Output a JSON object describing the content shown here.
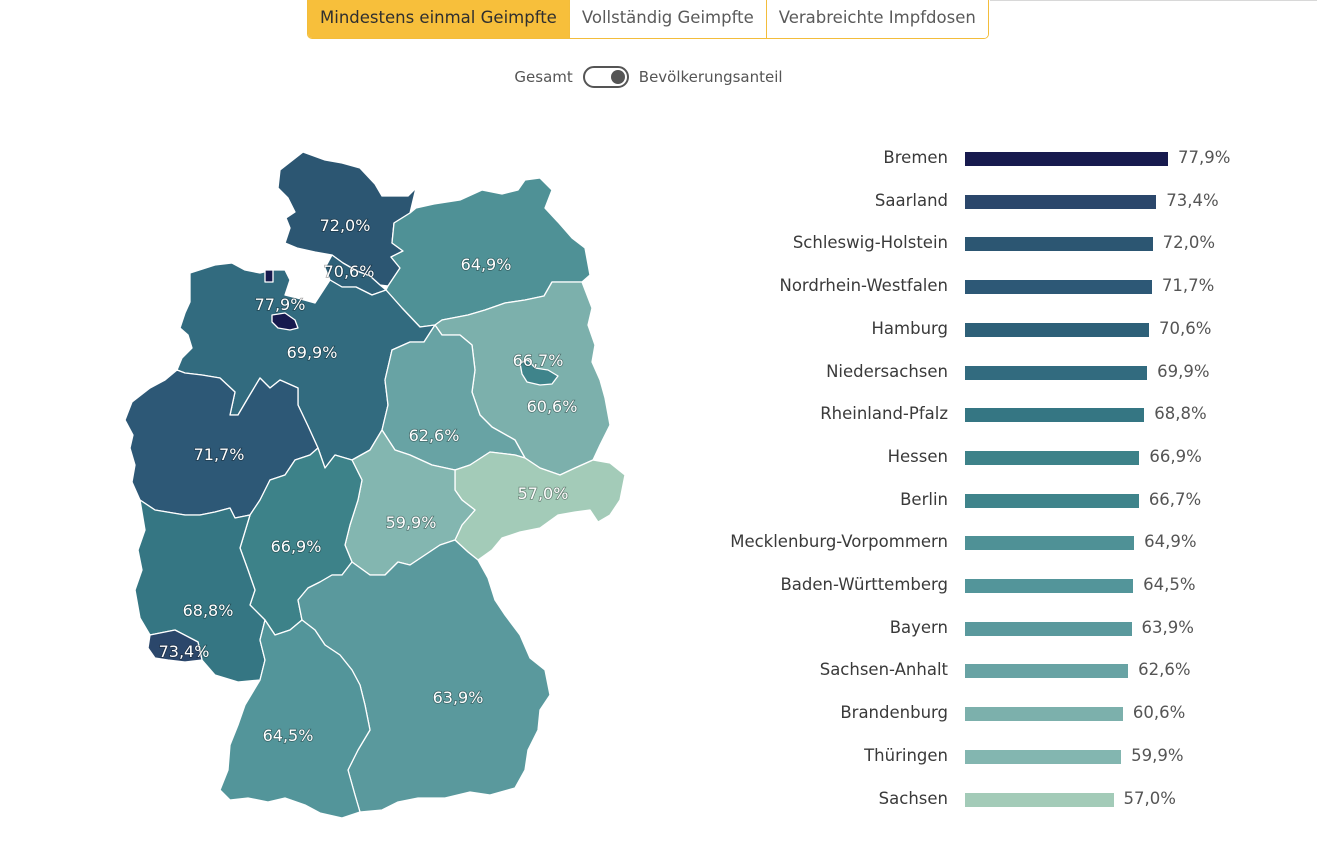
{
  "tabs": [
    {
      "label": "Mindestens einmal Geimpfte",
      "active": true
    },
    {
      "label": "Vollständig Geimpfte",
      "active": false
    },
    {
      "label": "Verabreichte Impfdosen",
      "active": false
    }
  ],
  "toggle": {
    "left_label": "Gesamt",
    "right_label": "Bevölkerungsanteil",
    "state": "Bevölkerungsanteil"
  },
  "colors": {
    "accent": "#f7bf3b",
    "scale_low": "#a3cbb8",
    "scale_high": "#171a4e"
  },
  "chart_data": [
    {
      "type": "bar",
      "orientation": "horizontal",
      "unit": "%",
      "xlim": [
        0,
        77.9
      ],
      "categories": [
        "Bremen",
        "Saarland",
        "Schleswig-Holstein",
        "Nordrhein-Westfalen",
        "Hamburg",
        "Niedersachsen",
        "Rheinland-Pfalz",
        "Hessen",
        "Berlin",
        "Mecklenburg-Vorpommern",
        "Baden-Württemberg",
        "Bayern",
        "Sachsen-Anhalt",
        "Brandenburg",
        "Thüringen",
        "Sachsen"
      ],
      "values": [
        77.9,
        73.4,
        72.0,
        71.7,
        70.6,
        69.9,
        68.8,
        66.9,
        66.7,
        64.9,
        64.5,
        63.9,
        62.6,
        60.6,
        59.9,
        57.0
      ],
      "value_labels": [
        "77,9%",
        "73,4%",
        "72,0%",
        "71,7%",
        "70,6%",
        "69,9%",
        "68,8%",
        "66,9%",
        "66,7%",
        "64,9%",
        "64,5%",
        "63,9%",
        "62,6%",
        "60,6%",
        "59,9%",
        "57,0%"
      ],
      "colors": [
        "#171a4e",
        "#2b476b",
        "#2c5672",
        "#2d5876",
        "#2e6078",
        "#326b7f",
        "#357683",
        "#3d8289",
        "#3f848b",
        "#4f9196",
        "#53959a",
        "#5a999d",
        "#68a3a4",
        "#7cb0ac",
        "#83b6b0",
        "#a3cbb8"
      ]
    },
    {
      "type": "choropleth",
      "regions": [
        {
          "name": "Schleswig-Holstein",
          "value": 72.0,
          "label": "72,0%",
          "color": "#2c5672"
        },
        {
          "name": "Hamburg",
          "value": 70.6,
          "label": "70,6%",
          "color": "#2e6078"
        },
        {
          "name": "Mecklenburg-Vorpommern",
          "value": 64.9,
          "label": "64,9%",
          "color": "#4f9196"
        },
        {
          "name": "Bremen",
          "value": 77.9,
          "label": "77,9%",
          "color": "#171a4e"
        },
        {
          "name": "Niedersachsen",
          "value": 69.9,
          "label": "69,9%",
          "color": "#326b7f"
        },
        {
          "name": "Berlin",
          "value": 66.7,
          "label": "66,7%",
          "color": "#3f848b"
        },
        {
          "name": "Brandenburg",
          "value": 60.6,
          "label": "60,6%",
          "color": "#7cb0ac"
        },
        {
          "name": "Sachsen-Anhalt",
          "value": 62.6,
          "label": "62,6%",
          "color": "#68a3a4"
        },
        {
          "name": "Nordrhein-Westfalen",
          "value": 71.7,
          "label": "71,7%",
          "color": "#2d5876"
        },
        {
          "name": "Sachsen",
          "value": 57.0,
          "label": "57,0%",
          "color": "#a3cbb8"
        },
        {
          "name": "Thüringen",
          "value": 59.9,
          "label": "59,9%",
          "color": "#83b6b0"
        },
        {
          "name": "Hessen",
          "value": 66.9,
          "label": "66,9%",
          "color": "#3d8289"
        },
        {
          "name": "Rheinland-Pfalz",
          "value": 68.8,
          "label": "68,8%",
          "color": "#357683"
        },
        {
          "name": "Saarland",
          "value": 73.4,
          "label": "73,4%",
          "color": "#2b476b"
        },
        {
          "name": "Bayern",
          "value": 63.9,
          "label": "63,9%",
          "color": "#5a999d"
        },
        {
          "name": "Baden-Württemberg",
          "value": 64.5,
          "label": "64,5%",
          "color": "#53959a"
        }
      ]
    }
  ]
}
